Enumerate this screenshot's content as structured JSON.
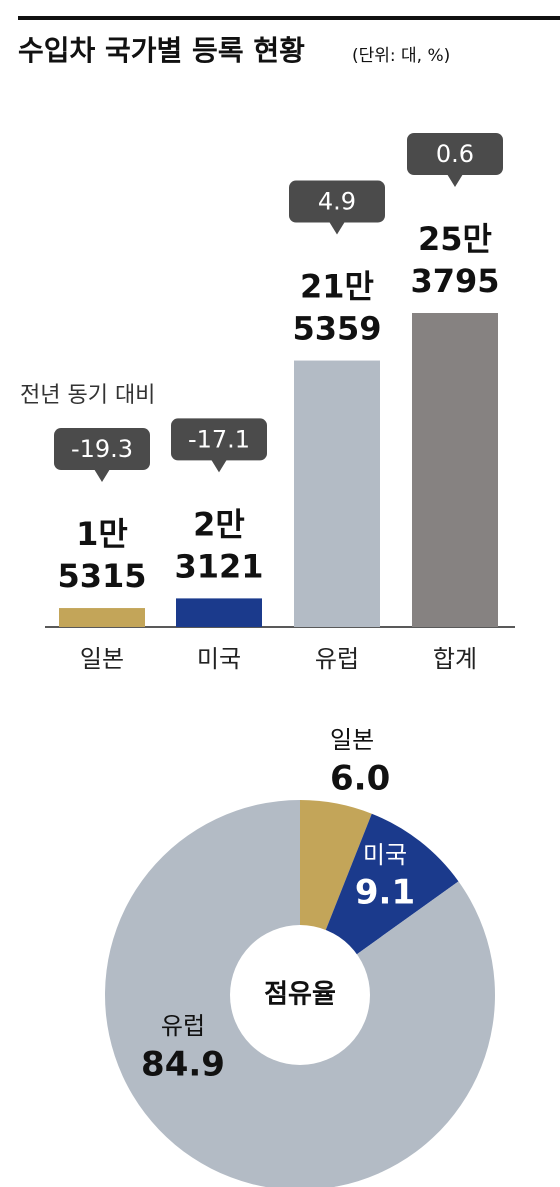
{
  "chart_data": [
    {
      "type": "bar",
      "title": "수입차 국가별 등록 현황",
      "subtitle": "(단위: 대, %)",
      "categories": [
        "일본",
        "미국",
        "유럽",
        "합계"
      ],
      "values": [
        15315,
        23121,
        215359,
        253795
      ],
      "value_labels": [
        [
          "1만",
          "5315"
        ],
        [
          "2만",
          "3121"
        ],
        [
          "21만",
          "5359"
        ],
        [
          "25만",
          "3795"
        ]
      ],
      "colors": [
        "#c3a559",
        "#1b3a8c",
        "#b3bbc5",
        "#868281"
      ],
      "annotation": "전년 동기 대비",
      "changes": [
        -19.3,
        -17.1,
        4.9,
        0.6
      ]
    },
    {
      "type": "pie",
      "center_label": "점유율",
      "categories": [
        "일본",
        "미국",
        "유럽"
      ],
      "values": [
        6,
        9.1,
        84.9
      ],
      "value_labels": [
        "6.0",
        "9.1",
        "84.9"
      ],
      "colors": [
        "#c3a559",
        "#1b3a8c",
        "#b3bbc5"
      ]
    }
  ]
}
